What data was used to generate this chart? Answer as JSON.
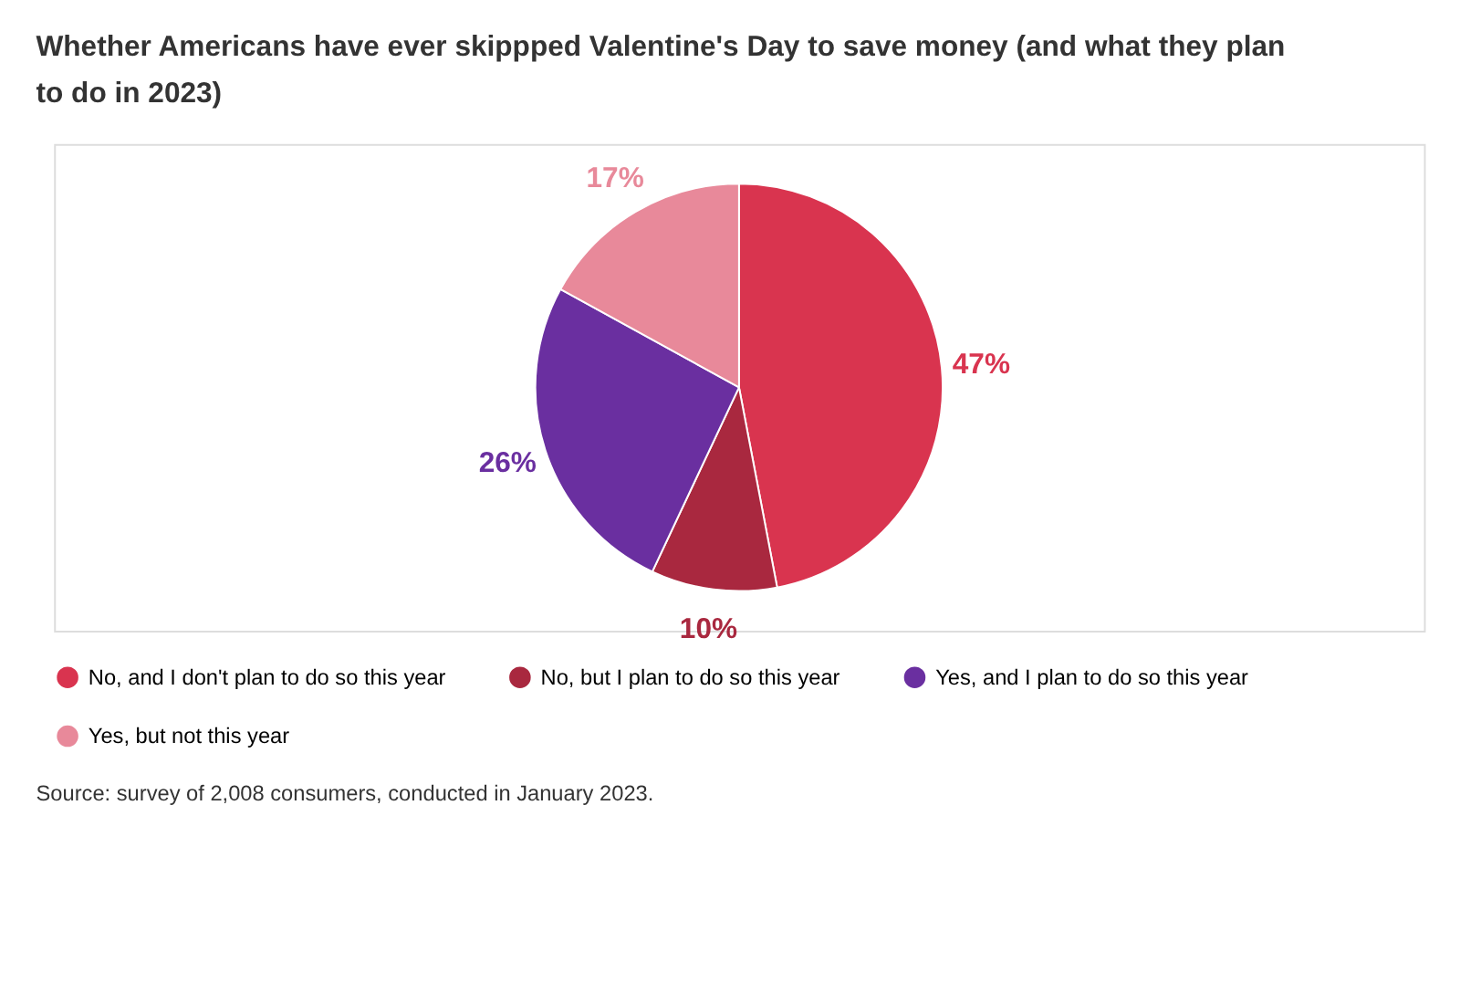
{
  "chart_data": {
    "type": "pie",
    "title": "Whether Americans have ever skippped Valentine's Day to save money (and what they plan to do in 2023)",
    "categories": [
      "No, and I don't plan to do so this year",
      "No, but I plan to do so this year",
      "Yes, and I plan to do so this year",
      "Yes, but not this year"
    ],
    "values": [
      47,
      10,
      26,
      17
    ],
    "value_labels": [
      "47%",
      "10%",
      "26%",
      "17%"
    ],
    "colors": [
      "#d9344f",
      "#a9283f",
      "#6a2fa0",
      "#e8899a"
    ],
    "legend": "bottom",
    "annotations": [
      "Source: survey of 2,008 consumers, conducted in January 2023."
    ]
  }
}
